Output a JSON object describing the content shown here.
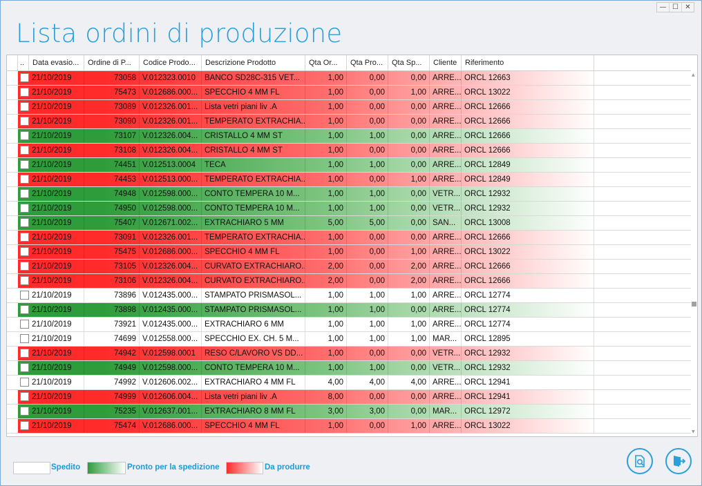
{
  "window": {
    "title": "Lista ordini di produzione",
    "controls": [
      "—",
      "☐",
      "✕"
    ]
  },
  "colors": {
    "red": "#ff2a2a",
    "green": "#2e9c3a",
    "white": "#ffffff",
    "accent": "#2a9fdc"
  },
  "table": {
    "columns": [
      "..",
      "Data evasio...",
      "Ordine di P...",
      "Codice Prodo...",
      "Descrizione Prodotto",
      "Qta Or...",
      "Qta Pro...",
      "Qta Sp...",
      "Cliente",
      "Riferimento"
    ],
    "rows": [
      {
        "status": "red",
        "date": "21/10/2019",
        "order": "73058",
        "code": "V.012323.0010",
        "desc": "BANCO SD28C-315 VET...",
        "qo": "1,00",
        "qp": "0,00",
        "qs": "0,00",
        "client": "ARRE...",
        "ref": "ORCL 12663"
      },
      {
        "status": "red",
        "date": "21/10/2019",
        "order": "75473",
        "code": "V.012686.000...",
        "desc": "SPECCHIO  4 MM FL",
        "qo": "1,00",
        "qp": "0,00",
        "qs": "1,00",
        "client": "ARRE...",
        "ref": "ORCL 13022"
      },
      {
        "status": "red",
        "date": "21/10/2019",
        "order": "73089",
        "code": "V.012326.001...",
        "desc": "Lista vetri piani liv .A",
        "qo": "1,00",
        "qp": "0,00",
        "qs": "0,00",
        "client": "ARRE...",
        "ref": "ORCL 12666"
      },
      {
        "status": "red",
        "date": "21/10/2019",
        "order": "73090",
        "code": "V.012326.001...",
        "desc": "TEMPERATO EXTRACHIA...",
        "qo": "1,00",
        "qp": "0,00",
        "qs": "0,00",
        "client": "ARRE...",
        "ref": "ORCL 12666"
      },
      {
        "status": "green",
        "date": "21/10/2019",
        "order": "73107",
        "code": "V.012326.004...",
        "desc": "CRISTALLO 4 MM ST",
        "qo": "1,00",
        "qp": "1,00",
        "qs": "0,00",
        "client": "ARRE...",
        "ref": "ORCL 12666"
      },
      {
        "status": "red",
        "date": "21/10/2019",
        "order": "73108",
        "code": "V.012326.004...",
        "desc": "CRISTALLO 4 MM ST",
        "qo": "1,00",
        "qp": "0,00",
        "qs": "0,00",
        "client": "ARRE...",
        "ref": "ORCL 12666"
      },
      {
        "status": "green",
        "date": "21/10/2019",
        "order": "74451",
        "code": "V.012513.0004",
        "desc": "TECA",
        "qo": "1,00",
        "qp": "1,00",
        "qs": "0,00",
        "client": "ARRE...",
        "ref": "ORCL 12849"
      },
      {
        "status": "red",
        "date": "21/10/2019",
        "order": "74453",
        "code": "V.012513.000...",
        "desc": "TEMPERATO EXTRACHIA...",
        "qo": "1,00",
        "qp": "0,00",
        "qs": "1,00",
        "client": "ARRE...",
        "ref": "ORCL 12849"
      },
      {
        "status": "green",
        "date": "21/10/2019",
        "order": "74948",
        "code": "V.012598.000...",
        "desc": "CONTO TEMPERA 10 M...",
        "qo": "1,00",
        "qp": "1,00",
        "qs": "0,00",
        "client": "VETR...",
        "ref": "ORCL 12932"
      },
      {
        "status": "green",
        "date": "21/10/2019",
        "order": "74950",
        "code": "V.012598.000...",
        "desc": "CONTO TEMPERA 10 M...",
        "qo": "1,00",
        "qp": "1,00",
        "qs": "0,00",
        "client": "VETR...",
        "ref": "ORCL 12932"
      },
      {
        "status": "green",
        "date": "21/10/2019",
        "order": "75407",
        "code": "V.012671.002...",
        "desc": "EXTRACHIARO 5 MM",
        "qo": "5,00",
        "qp": "5,00",
        "qs": "0,00",
        "client": "SAN...",
        "ref": "ORCL 13008"
      },
      {
        "status": "red",
        "date": "21/10/2019",
        "order": "73091",
        "code": "V.012326.001...",
        "desc": "TEMPERATO EXTRACHIA...",
        "qo": "1,00",
        "qp": "0,00",
        "qs": "0,00",
        "client": "ARRE...",
        "ref": "ORCL 12666"
      },
      {
        "status": "red",
        "date": "21/10/2019",
        "order": "75475",
        "code": "V.012686.000...",
        "desc": "SPECCHIO  4 MM FL",
        "qo": "1,00",
        "qp": "0,00",
        "qs": "1,00",
        "client": "ARRE...",
        "ref": "ORCL 13022"
      },
      {
        "status": "red",
        "date": "21/10/2019",
        "order": "73105",
        "code": "V.012326.004...",
        "desc": "CURVATO EXTRACHIARO...",
        "qo": "2,00",
        "qp": "0,00",
        "qs": "2,00",
        "client": "ARRE...",
        "ref": "ORCL 12666"
      },
      {
        "status": "red",
        "date": "21/10/2019",
        "order": "73106",
        "code": "V.012326.004...",
        "desc": "CURVATO EXTRACHIARO...",
        "qo": "2,00",
        "qp": "0,00",
        "qs": "2,00",
        "client": "ARRE...",
        "ref": "ORCL 12666"
      },
      {
        "status": "white",
        "date": "21/10/2019",
        "order": "73896",
        "code": "V.012435.000...",
        "desc": "STAMPATO PRISMASOL...",
        "qo": "1,00",
        "qp": "1,00",
        "qs": "1,00",
        "client": "ARRE...",
        "ref": "ORCL 12774"
      },
      {
        "status": "green",
        "date": "21/10/2019",
        "order": "73898",
        "code": "V.012435.000...",
        "desc": "STAMPATO PRISMASOL...",
        "qo": "1,00",
        "qp": "1,00",
        "qs": "0,00",
        "client": "ARRE...",
        "ref": "ORCL 12774"
      },
      {
        "status": "white",
        "date": "21/10/2019",
        "order": "73921",
        "code": "V.012435.000...",
        "desc": "EXTRACHIARO 6 MM",
        "qo": "1,00",
        "qp": "1,00",
        "qs": "1,00",
        "client": "ARRE...",
        "ref": "ORCL 12774"
      },
      {
        "status": "white",
        "date": "21/10/2019",
        "order": "74699",
        "code": "V.012558.000...",
        "desc": "SPECCHIO EX. CH.  5 M...",
        "qo": "1,00",
        "qp": "1,00",
        "qs": "1,00",
        "client": "MAR...",
        "ref": "ORCL 12895"
      },
      {
        "status": "red",
        "date": "21/10/2019",
        "order": "74942",
        "code": "V.012598.0001",
        "desc": "RESO C/LAVORO VS DD...",
        "qo": "1,00",
        "qp": "0,00",
        "qs": "0,00",
        "client": "VETR...",
        "ref": "ORCL 12932"
      },
      {
        "status": "green",
        "date": "21/10/2019",
        "order": "74949",
        "code": "V.012598.000...",
        "desc": "CONTO TEMPERA 10 M...",
        "qo": "1,00",
        "qp": "1,00",
        "qs": "0,00",
        "client": "VETR...",
        "ref": "ORCL 12932"
      },
      {
        "status": "white",
        "date": "21/10/2019",
        "order": "74992",
        "code": "V.012606.002...",
        "desc": "EXTRACHIARO 4 MM FL",
        "qo": "4,00",
        "qp": "4,00",
        "qs": "4,00",
        "client": "ARRE...",
        "ref": "ORCL 12941"
      },
      {
        "status": "red",
        "date": "21/10/2019",
        "order": "74999",
        "code": "V.012606.004...",
        "desc": "Lista vetri piani liv .A",
        "qo": "8,00",
        "qp": "0,00",
        "qs": "0,00",
        "client": "ARRE...",
        "ref": "ORCL 12941"
      },
      {
        "status": "green",
        "date": "21/10/2019",
        "order": "75235",
        "code": "V.012637.001...",
        "desc": "EXTRACHIARO 8 MM FL",
        "qo": "3,00",
        "qp": "3,00",
        "qs": "0,00",
        "client": "MAR...",
        "ref": "ORCL 12972"
      },
      {
        "status": "red",
        "date": "21/10/2019",
        "order": "75474",
        "code": "V.012686.000...",
        "desc": "SPECCHIO  4 MM FL",
        "qo": "1,00",
        "qp": "0,00",
        "qs": "1,00",
        "client": "ARRE...",
        "ref": "ORCL 13022"
      }
    ]
  },
  "legend": [
    {
      "label": "Spedito",
      "status": "white"
    },
    {
      "label": "Pronto per la spedizione",
      "status": "green"
    },
    {
      "label": "Da produrre",
      "status": "red"
    }
  ],
  "buttons": {
    "preview_icon": "document-search-icon",
    "exit_icon": "exit-door-icon"
  }
}
